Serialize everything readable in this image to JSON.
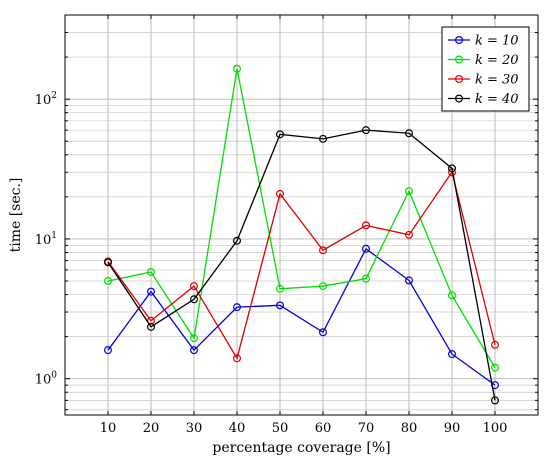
{
  "chart_data": {
    "type": "line",
    "xlabel": "percentage coverage [%]",
    "ylabel": "time [sec.]",
    "x": [
      10,
      20,
      30,
      40,
      50,
      60,
      70,
      80,
      90,
      100
    ],
    "x_ticks": [
      "10",
      "20",
      "30",
      "40",
      "50",
      "60",
      "70",
      "80",
      "90",
      "100"
    ],
    "xlim": [
      0,
      110
    ],
    "yscale": "log",
    "ylim": [
      0.55,
      400
    ],
    "y_ticks": [
      {
        "value": 1,
        "base": "10",
        "exp": "0"
      },
      {
        "value": 10,
        "base": "10",
        "exp": "1"
      },
      {
        "value": 100,
        "base": "10",
        "exp": "2"
      }
    ],
    "grid": true,
    "legend_position": "top-right",
    "series": [
      {
        "name": "k = 10",
        "color": "#0000dd",
        "values": [
          1.6,
          4.2,
          1.6,
          3.25,
          3.35,
          2.15,
          8.5,
          5.05,
          1.5,
          0.9
        ]
      },
      {
        "name": "k = 20",
        "color": "#00dd00",
        "values": [
          5.0,
          5.8,
          1.95,
          165,
          4.4,
          4.6,
          5.2,
          22,
          3.95,
          1.2
        ]
      },
      {
        "name": "k = 30",
        "color": "#dd0000",
        "values": [
          6.9,
          2.6,
          4.6,
          1.4,
          21,
          8.3,
          12.5,
          10.7,
          30,
          1.75
        ]
      },
      {
        "name": "k = 40",
        "color": "#000000",
        "values": [
          6.8,
          2.35,
          3.7,
          9.7,
          56,
          52,
          60,
          57,
          32,
          0.7
        ]
      }
    ]
  }
}
